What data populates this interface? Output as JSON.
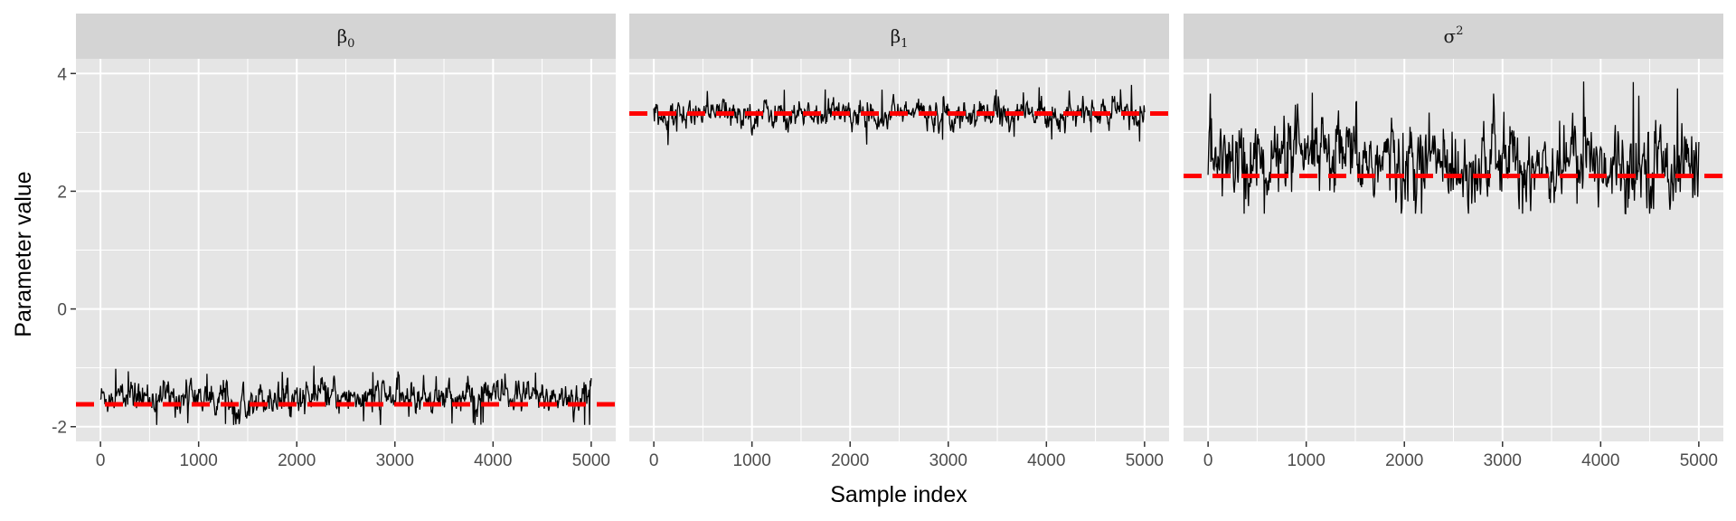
{
  "chart_data": {
    "type": "line",
    "xlabel": "Sample index",
    "ylabel": "Parameter value",
    "xlim": [
      -250,
      5250
    ],
    "ylim": [
      -2.25,
      4.25
    ],
    "x_ticks": [
      0,
      1000,
      2000,
      3000,
      4000,
      5000
    ],
    "y_ticks": [
      -2,
      0,
      2,
      4
    ],
    "grid": true,
    "colors": {
      "panel_bg": "#e5e5e5",
      "strip_bg": "#d4d4d4",
      "grid": "#ffffff",
      "trace": "#000000",
      "reference": "#ff0000",
      "tick_text": "#4d4d4d"
    },
    "panels": [
      {
        "label": {
          "base": "β",
          "sub": "0",
          "sup": ""
        },
        "trace_center": -1.5,
        "trace_spread": 0.14,
        "trace_min": -1.97,
        "trace_max": -0.96,
        "reference": -1.62
      },
      {
        "label": {
          "base": "β",
          "sub": "1",
          "sup": ""
        },
        "trace_center": 3.32,
        "trace_spread": 0.12,
        "trace_min": 2.68,
        "trace_max": 3.86,
        "reference": 3.32
      },
      {
        "label": {
          "base": "σ",
          "sub": "",
          "sup": "2"
        },
        "trace_center": 2.5,
        "trace_spread": 0.35,
        "trace_min": 1.62,
        "trace_max": 3.98,
        "reference": 2.26
      }
    ]
  }
}
